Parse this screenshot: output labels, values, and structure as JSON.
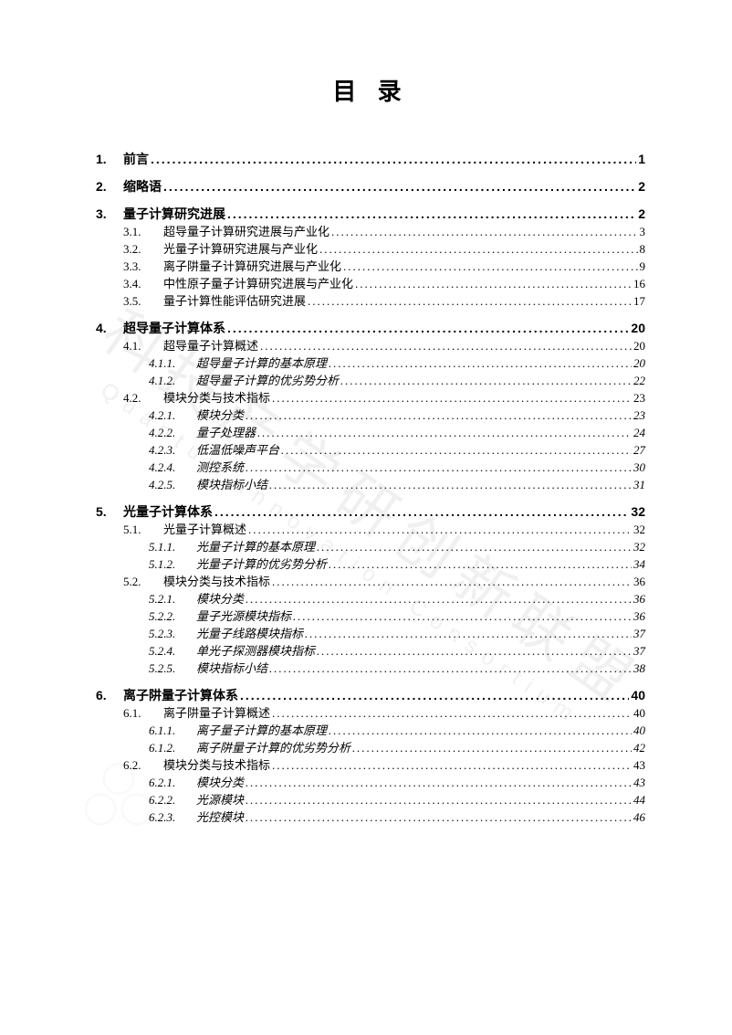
{
  "title": "目 录",
  "watermark": {
    "cn": "科技产学研创新联盟",
    "en": "Quantum Innovation Consortium"
  },
  "colors": {
    "text": "#000000",
    "background": "#ffffff",
    "watermark": "#888888"
  },
  "typography": {
    "title_fontsize": 26,
    "title_letterspacing": 8,
    "l1_fontsize": 14,
    "l2_fontsize": 13,
    "l3_fontsize": 13,
    "l3_style": "italic"
  },
  "toc": [
    {
      "level": 1,
      "num": "1.",
      "label": "前言",
      "page": "1"
    },
    {
      "level": 1,
      "num": "2.",
      "label": "缩略语",
      "page": "2"
    },
    {
      "level": 1,
      "num": "3.",
      "label": "量子计算研究进展",
      "page": "2"
    },
    {
      "level": 2,
      "num": "3.1.",
      "label": "超导量子计算研究进展与产业化",
      "page": "3"
    },
    {
      "level": 2,
      "num": "3.2.",
      "label": "光量子计算研究进展与产业化",
      "page": "8"
    },
    {
      "level": 2,
      "num": "3.3.",
      "label": "离子阱量子计算研究进展与产业化",
      "page": "9"
    },
    {
      "level": 2,
      "num": "3.4.",
      "label": "中性原子量子计算研究进展与产业化",
      "page": "16"
    },
    {
      "level": 2,
      "num": "3.5.",
      "label": "量子计算性能评估研究进展",
      "page": "17"
    },
    {
      "level": 1,
      "num": "4.",
      "label": "超导量子计算体系",
      "page": "20"
    },
    {
      "level": 2,
      "num": "4.1.",
      "label": "超导量子计算概述",
      "page": "20"
    },
    {
      "level": 3,
      "num": "4.1.1.",
      "label": "超导量子计算的基本原理",
      "page": "20"
    },
    {
      "level": 3,
      "num": "4.1.2.",
      "label": "超导量子计算的优劣势分析",
      "page": "22"
    },
    {
      "level": 2,
      "num": "4.2.",
      "label": "模块分类与技术指标",
      "page": "23"
    },
    {
      "level": 3,
      "num": "4.2.1.",
      "label": "模块分类",
      "page": "23"
    },
    {
      "level": 3,
      "num": "4.2.2.",
      "label": "量子处理器",
      "page": "24"
    },
    {
      "level": 3,
      "num": "4.2.3.",
      "label": "低温低噪声平台",
      "page": "27"
    },
    {
      "level": 3,
      "num": "4.2.4.",
      "label": "测控系统",
      "page": "30"
    },
    {
      "level": 3,
      "num": "4.2.5.",
      "label": "模块指标小结",
      "page": "31"
    },
    {
      "level": 1,
      "num": "5.",
      "label": "光量子计算体系",
      "page": "32"
    },
    {
      "level": 2,
      "num": "5.1.",
      "label": "光量子计算概述",
      "page": "32"
    },
    {
      "level": 3,
      "num": "5.1.1.",
      "label": "光量子计算的基本原理",
      "page": "32"
    },
    {
      "level": 3,
      "num": "5.1.2.",
      "label": "光量子计算的优劣势分析",
      "page": "34"
    },
    {
      "level": 2,
      "num": "5.2.",
      "label": "模块分类与技术指标",
      "page": "36"
    },
    {
      "level": 3,
      "num": "5.2.1.",
      "label": "模块分类",
      "page": "36"
    },
    {
      "level": 3,
      "num": "5.2.2.",
      "label": "量子光源模块指标",
      "page": "36"
    },
    {
      "level": 3,
      "num": "5.2.3.",
      "label": "光量子线路模块指标",
      "page": "37"
    },
    {
      "level": 3,
      "num": "5.2.4.",
      "label": "单光子探测器模块指标",
      "page": "37"
    },
    {
      "level": 3,
      "num": "5.2.5.",
      "label": "模块指标小结",
      "page": "38"
    },
    {
      "level": 1,
      "num": "6.",
      "label": "离子阱量子计算体系",
      "page": "40"
    },
    {
      "level": 2,
      "num": "6.1.",
      "label": "离子阱量子计算概述",
      "page": "40"
    },
    {
      "level": 3,
      "num": "6.1.1.",
      "label": "离子量子计算的基本原理",
      "page": "40"
    },
    {
      "level": 3,
      "num": "6.1.2.",
      "label": "离子阱量子计算的优劣势分析",
      "page": "42"
    },
    {
      "level": 2,
      "num": "6.2.",
      "label": "模块分类与技术指标",
      "page": "43"
    },
    {
      "level": 3,
      "num": "6.2.1.",
      "label": "模块分类",
      "page": "43"
    },
    {
      "level": 3,
      "num": "6.2.2.",
      "label": "光源模块",
      "page": "44"
    },
    {
      "level": 3,
      "num": "6.2.3.",
      "label": "光控模块",
      "page": "46"
    }
  ]
}
